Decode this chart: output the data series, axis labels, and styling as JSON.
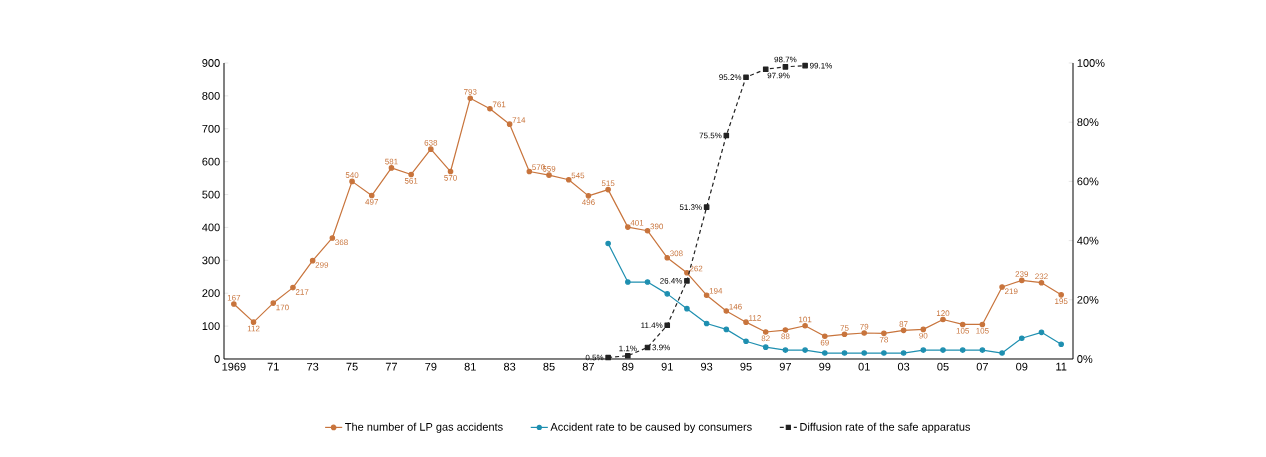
{
  "chart_data": {
    "type": "line",
    "x": [
      1969,
      1970,
      1971,
      1972,
      1973,
      1974,
      1975,
      1976,
      1977,
      1978,
      1979,
      1980,
      1981,
      1982,
      1983,
      1984,
      1985,
      1986,
      1987,
      1988,
      1989,
      1990,
      1991,
      1992,
      1993,
      1994,
      1995,
      1996,
      1997,
      1998,
      1999,
      2000,
      2001,
      2002,
      2003,
      2004,
      2005,
      2006,
      2007,
      2008,
      2009,
      2010,
      2011
    ],
    "series": [
      {
        "name": "The number of LP gas accidents",
        "color": "#c8743c",
        "marker": "circle",
        "line_style": "solid",
        "values": [
          167,
          112,
          170,
          217,
          299,
          368,
          540,
          497,
          581,
          561,
          638,
          570,
          793,
          761,
          714,
          570,
          559,
          545,
          496,
          515,
          401,
          390,
          308,
          262,
          194,
          146,
          112,
          82,
          88,
          101,
          69,
          75,
          79,
          78,
          87,
          90,
          120,
          105,
          105,
          219,
          239,
          232,
          195
        ],
        "value_labels": [
          "167",
          "112",
          "170",
          "217",
          "299",
          "368",
          "540",
          "497",
          "581",
          "561",
          "638",
          "570",
          "793",
          "761",
          "714",
          "570",
          "559",
          "545",
          "496",
          "515",
          "401",
          "390",
          "308",
          "262",
          "194",
          "146",
          "112",
          "82",
          "88",
          "101",
          "69",
          "75",
          "79",
          "78",
          "87",
          "90",
          "120",
          "105",
          "105",
          "219",
          "239",
          "232",
          "195"
        ]
      },
      {
        "name": "Accident rate to be caused by consumers",
        "color": "#1e8fb0",
        "axis": "y2",
        "marker": "circle",
        "line_style": "solid",
        "x": [
          1988,
          1989,
          1990,
          1991,
          1992,
          1993,
          1994,
          1995,
          1996,
          1997,
          1998,
          1999,
          2000,
          2001,
          2002,
          2003,
          2004,
          2005,
          2006,
          2007,
          2008,
          2009,
          2010,
          2011
        ],
        "values": [
          39,
          26,
          26,
          22,
          17,
          12,
          10,
          6,
          4,
          3,
          3,
          2,
          2,
          2,
          2,
          2,
          3,
          3,
          3,
          3,
          2,
          7,
          9,
          5
        ]
      },
      {
        "name": "Diffusion rate of the safe apparatus",
        "color": "#222222",
        "axis": "y2",
        "marker": "square",
        "line_style": "dashed",
        "x": [
          1988,
          1989,
          1990,
          1991,
          1992,
          1993,
          1994,
          1995,
          1996,
          1997,
          1998
        ],
        "values": [
          0.5,
          1.1,
          3.9,
          11.4,
          26.4,
          51.3,
          75.5,
          95.2,
          97.9,
          98.7,
          99.1
        ],
        "value_labels": [
          "0.5%",
          "1.1%",
          "3.9%",
          "11.4%",
          "26.4%",
          "51.3%",
          "75.5%",
          "95.2%",
          "97.9%",
          "98.7%",
          "99.1%"
        ]
      }
    ],
    "xlim": [
      1968.5,
      2011.6
    ],
    "xticks": [
      {
        "value": 1969,
        "label": "1969"
      },
      {
        "value": 1971,
        "label": "71"
      },
      {
        "value": 1973,
        "label": "73"
      },
      {
        "value": 1975,
        "label": "75"
      },
      {
        "value": 1977,
        "label": "77"
      },
      {
        "value": 1979,
        "label": "79"
      },
      {
        "value": 1981,
        "label": "81"
      },
      {
        "value": 1983,
        "label": "83"
      },
      {
        "value": 1985,
        "label": "85"
      },
      {
        "value": 1987,
        "label": "87"
      },
      {
        "value": 1989,
        "label": "89"
      },
      {
        "value": 1991,
        "label": "91"
      },
      {
        "value": 1993,
        "label": "93"
      },
      {
        "value": 1995,
        "label": "95"
      },
      {
        "value": 1997,
        "label": "97"
      },
      {
        "value": 1999,
        "label": "99"
      },
      {
        "value": 2001,
        "label": "01"
      },
      {
        "value": 2003,
        "label": "03"
      },
      {
        "value": 2005,
        "label": "05"
      },
      {
        "value": 2007,
        "label": "07"
      },
      {
        "value": 2009,
        "label": "09"
      },
      {
        "value": 2011,
        "label": "11"
      }
    ],
    "ylim": [
      0,
      900
    ],
    "yticks": [
      0,
      100,
      200,
      300,
      400,
      500,
      600,
      700,
      800,
      900
    ],
    "y2lim": [
      0,
      100
    ],
    "y2ticks": [
      {
        "value": 0,
        "label": "0%"
      },
      {
        "value": 20,
        "label": "20%"
      },
      {
        "value": 40,
        "label": "40%"
      },
      {
        "value": 60,
        "label": "60%"
      },
      {
        "value": 80,
        "label": "80%"
      },
      {
        "value": 100,
        "label": "100%"
      }
    ],
    "grid": false,
    "legend": "bottom"
  }
}
